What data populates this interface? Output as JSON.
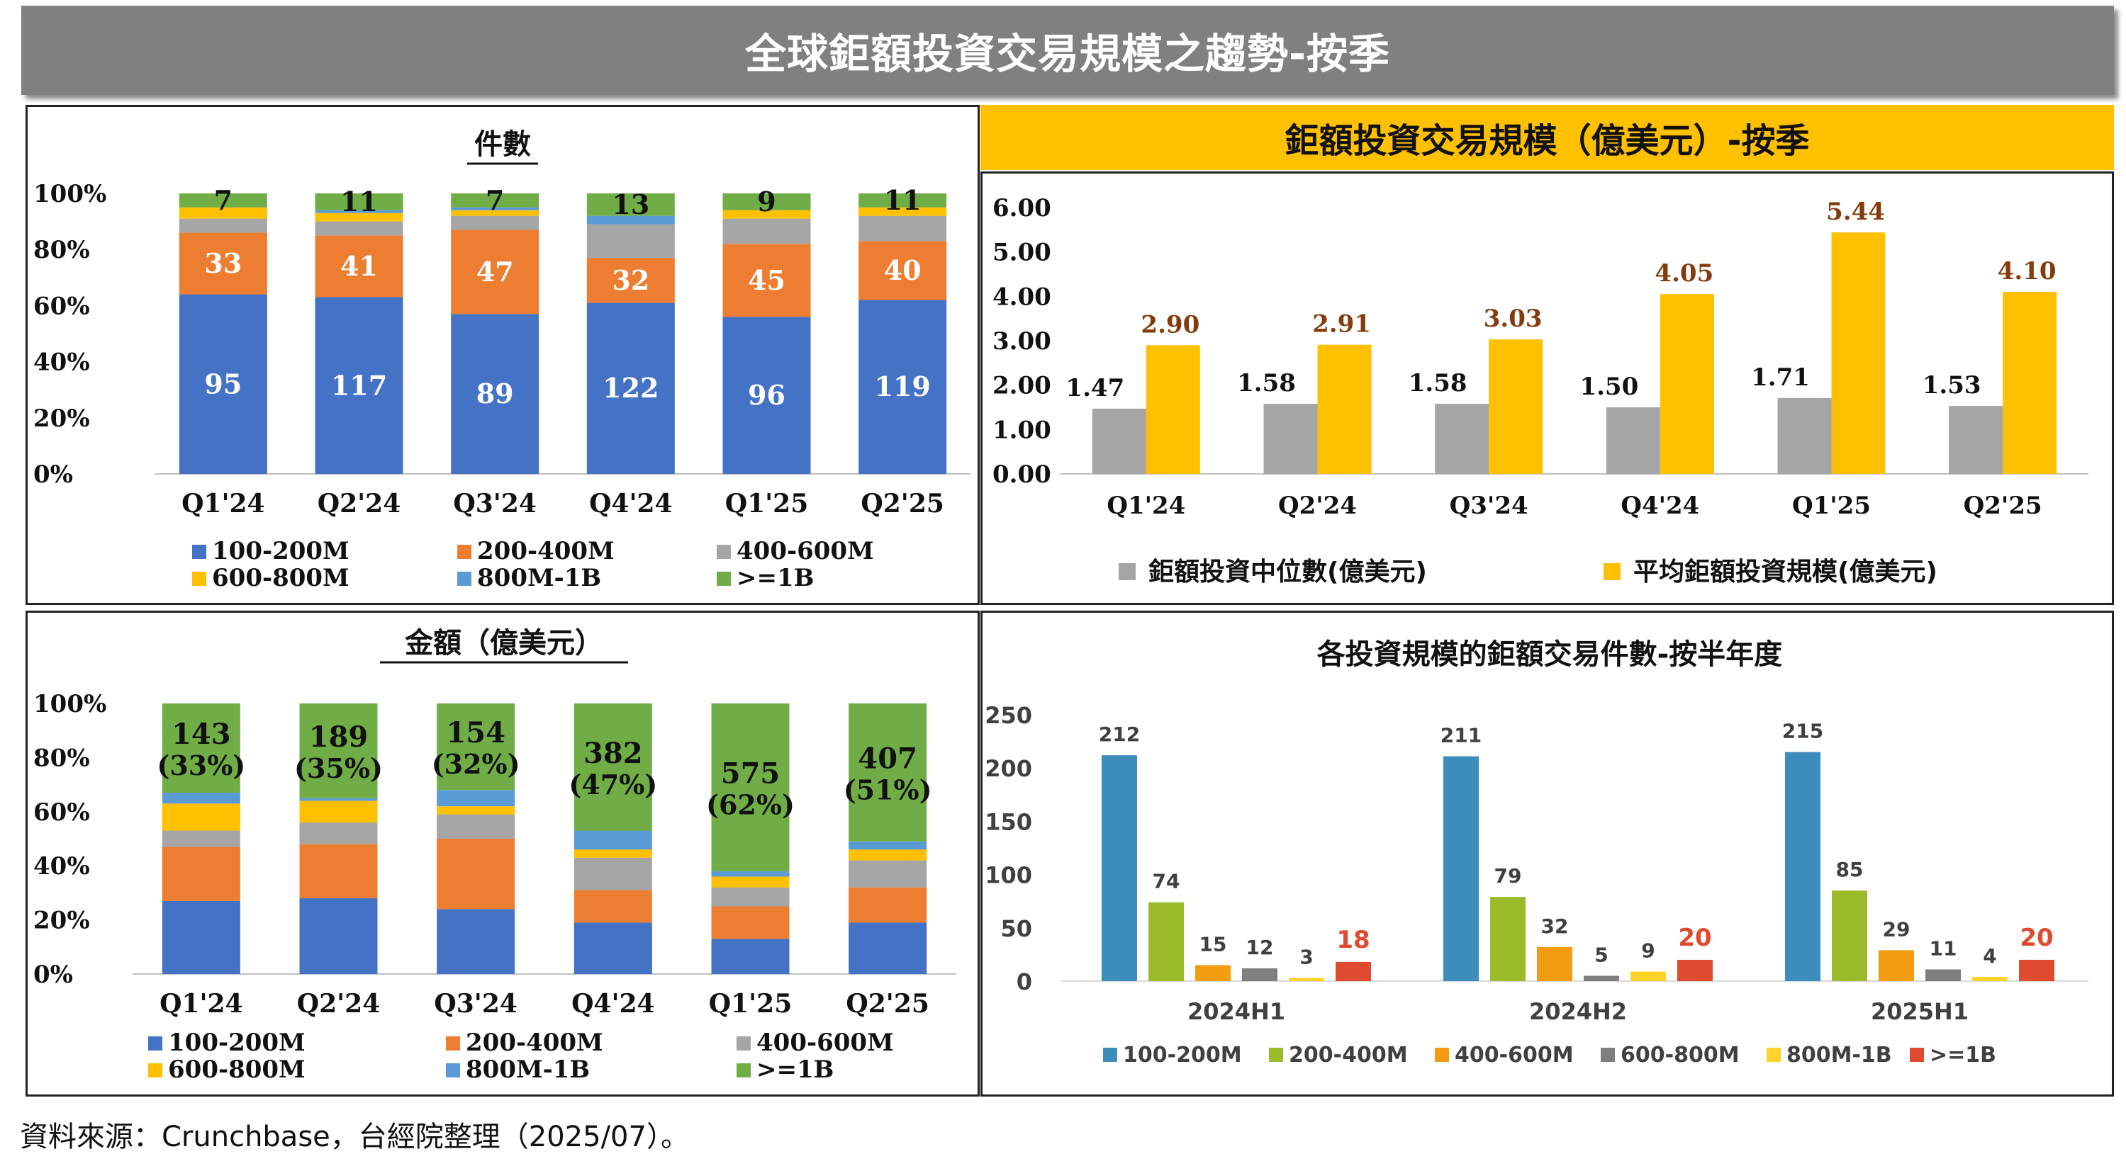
{
  "header": {
    "title": "全球鉅額投資交易規模之趨勢-按季"
  },
  "source": "資料來源：Crunchbase，台經院整理（2025/07）。",
  "colors": {
    "blue": "#4472C4",
    "orange": "#ED7D31",
    "gray": "#A5A5A5",
    "yellow": "#FFC000",
    "lightblue": "#5B9BD5",
    "green": "#70AD47",
    "c2_gray": "#A5A5A5",
    "c2_yellow": "#FFC000",
    "c2_label": "#843C0C",
    "c4_blue": "#3C8DBC",
    "c4_green": "#9BBB2A",
    "c4_orange": "#F39C12",
    "c4_gray": "#7F7F7F",
    "c4_yellow": "#FFD32A",
    "c4_red": "#E04A2F"
  },
  "chart_data": [
    {
      "id": "count_pct",
      "type": "bar",
      "stacked": "percent",
      "title": "件數",
      "categories": [
        "Q1'24",
        "Q2'24",
        "Q3'24",
        "Q4'24",
        "Q1'25",
        "Q2'25"
      ],
      "yticks": [
        "0%",
        "20%",
        "40%",
        "60%",
        "80%",
        "100%"
      ],
      "series": [
        {
          "name": "100-200M",
          "color": "blue",
          "values": [
            64,
            63,
            57,
            61,
            56,
            62
          ],
          "labels": [
            "95",
            "117",
            "89",
            "122",
            "96",
            "119"
          ]
        },
        {
          "name": "200-400M",
          "color": "orange",
          "values": [
            22,
            22,
            30,
            16,
            26,
            21
          ],
          "labels": [
            "33",
            "41",
            "47",
            "32",
            "45",
            "40"
          ]
        },
        {
          "name": "400-600M",
          "color": "gray",
          "values": [
            5,
            5,
            5,
            12,
            9,
            9
          ],
          "labels": []
        },
        {
          "name": "600-800M",
          "color": "yellow",
          "values": [
            4,
            3,
            2,
            0,
            3,
            3
          ],
          "labels": []
        },
        {
          "name": "800M-1B",
          "color": "lightblue",
          "values": [
            0,
            1,
            1,
            3,
            0,
            0
          ],
          "labels": []
        },
        {
          "name": ">=1B",
          "color": "green",
          "values": [
            5,
            6,
            5,
            8,
            6,
            5
          ],
          "labels": [
            "7",
            "11",
            "7",
            "13",
            "9",
            "11"
          ]
        }
      ]
    },
    {
      "id": "size_avg",
      "type": "bar",
      "title": "鉅額投資交易規模（億美元）-按季",
      "categories": [
        "Q1'24",
        "Q2'24",
        "Q3'24",
        "Q4'24",
        "Q1'25",
        "Q2'25"
      ],
      "ylim": [
        0,
        6
      ],
      "yticks": [
        "0.00",
        "1.00",
        "2.00",
        "3.00",
        "4.00",
        "5.00",
        "6.00"
      ],
      "series": [
        {
          "name": "鉅額投資中位數(億美元)",
          "color": "c2_gray",
          "values": [
            1.47,
            1.58,
            1.58,
            1.5,
            1.71,
            1.53
          ],
          "labels": [
            "1.47",
            "1.58",
            "1.58",
            "1.50",
            "1.71",
            "1.53"
          ]
        },
        {
          "name": "平均鉅額投資規模(億美元)",
          "color": "c2_yellow",
          "values": [
            2.9,
            2.91,
            3.03,
            4.05,
            5.44,
            4.1
          ],
          "labels": [
            "2.90",
            "2.91",
            "3.03",
            "4.05",
            "5.44",
            "4.10"
          ]
        }
      ]
    },
    {
      "id": "amount_pct",
      "type": "bar",
      "stacked": "percent",
      "title": "金額（億美元）",
      "categories": [
        "Q1'24",
        "Q2'24",
        "Q3'24",
        "Q4'24",
        "Q1'25",
        "Q2'25"
      ],
      "yticks": [
        "0%",
        "20%",
        "40%",
        "60%",
        "80%",
        "100%"
      ],
      "series": [
        {
          "name": "100-200M",
          "color": "blue",
          "values": [
            27,
            28,
            24,
            19,
            13,
            19
          ],
          "labels": []
        },
        {
          "name": "200-400M",
          "color": "orange",
          "values": [
            20,
            20,
            26,
            12,
            12,
            13
          ],
          "labels": []
        },
        {
          "name": "400-600M",
          "color": "gray",
          "values": [
            6,
            8,
            9,
            12,
            7,
            10
          ],
          "labels": []
        },
        {
          "name": "600-800M",
          "color": "yellow",
          "values": [
            10,
            8,
            3,
            3,
            4,
            4
          ],
          "labels": []
        },
        {
          "name": "800M-1B",
          "color": "lightblue",
          "values": [
            4,
            1,
            6,
            7,
            2,
            3
          ],
          "labels": []
        },
        {
          "name": ">=1B",
          "color": "green",
          "values": [
            33,
            35,
            32,
            47,
            62,
            51
          ],
          "labels": [
            "143",
            "189",
            "154",
            "382",
            "575",
            "407"
          ],
          "sublabels": [
            "(33%)",
            "(35%)",
            "(32%)",
            "(47%)",
            "(62%)",
            "(51%)"
          ]
        }
      ]
    },
    {
      "id": "halfyear_count",
      "type": "bar",
      "title": "各投資規模的鉅額交易件數-按半年度",
      "categories": [
        "2024H1",
        "2024H2",
        "2025H1"
      ],
      "ylim": [
        0,
        250
      ],
      "yticks": [
        "0",
        "50",
        "100",
        "150",
        "200",
        "250"
      ],
      "series": [
        {
          "name": "100-200M",
          "color": "c4_blue",
          "values": [
            212,
            211,
            215
          ]
        },
        {
          "name": "200-400M",
          "color": "c4_green",
          "values": [
            74,
            79,
            85
          ]
        },
        {
          "name": "400-600M",
          "color": "c4_orange",
          "values": [
            15,
            32,
            29
          ]
        },
        {
          "name": "600-800M",
          "color": "c4_gray",
          "values": [
            12,
            5,
            11
          ]
        },
        {
          "name": "800M-1B",
          "color": "c4_yellow",
          "values": [
            3,
            9,
            4
          ]
        },
        {
          "name": ">=1B",
          "color": "c4_red",
          "values": [
            18,
            20,
            20
          ],
          "highlight": true
        }
      ]
    }
  ]
}
